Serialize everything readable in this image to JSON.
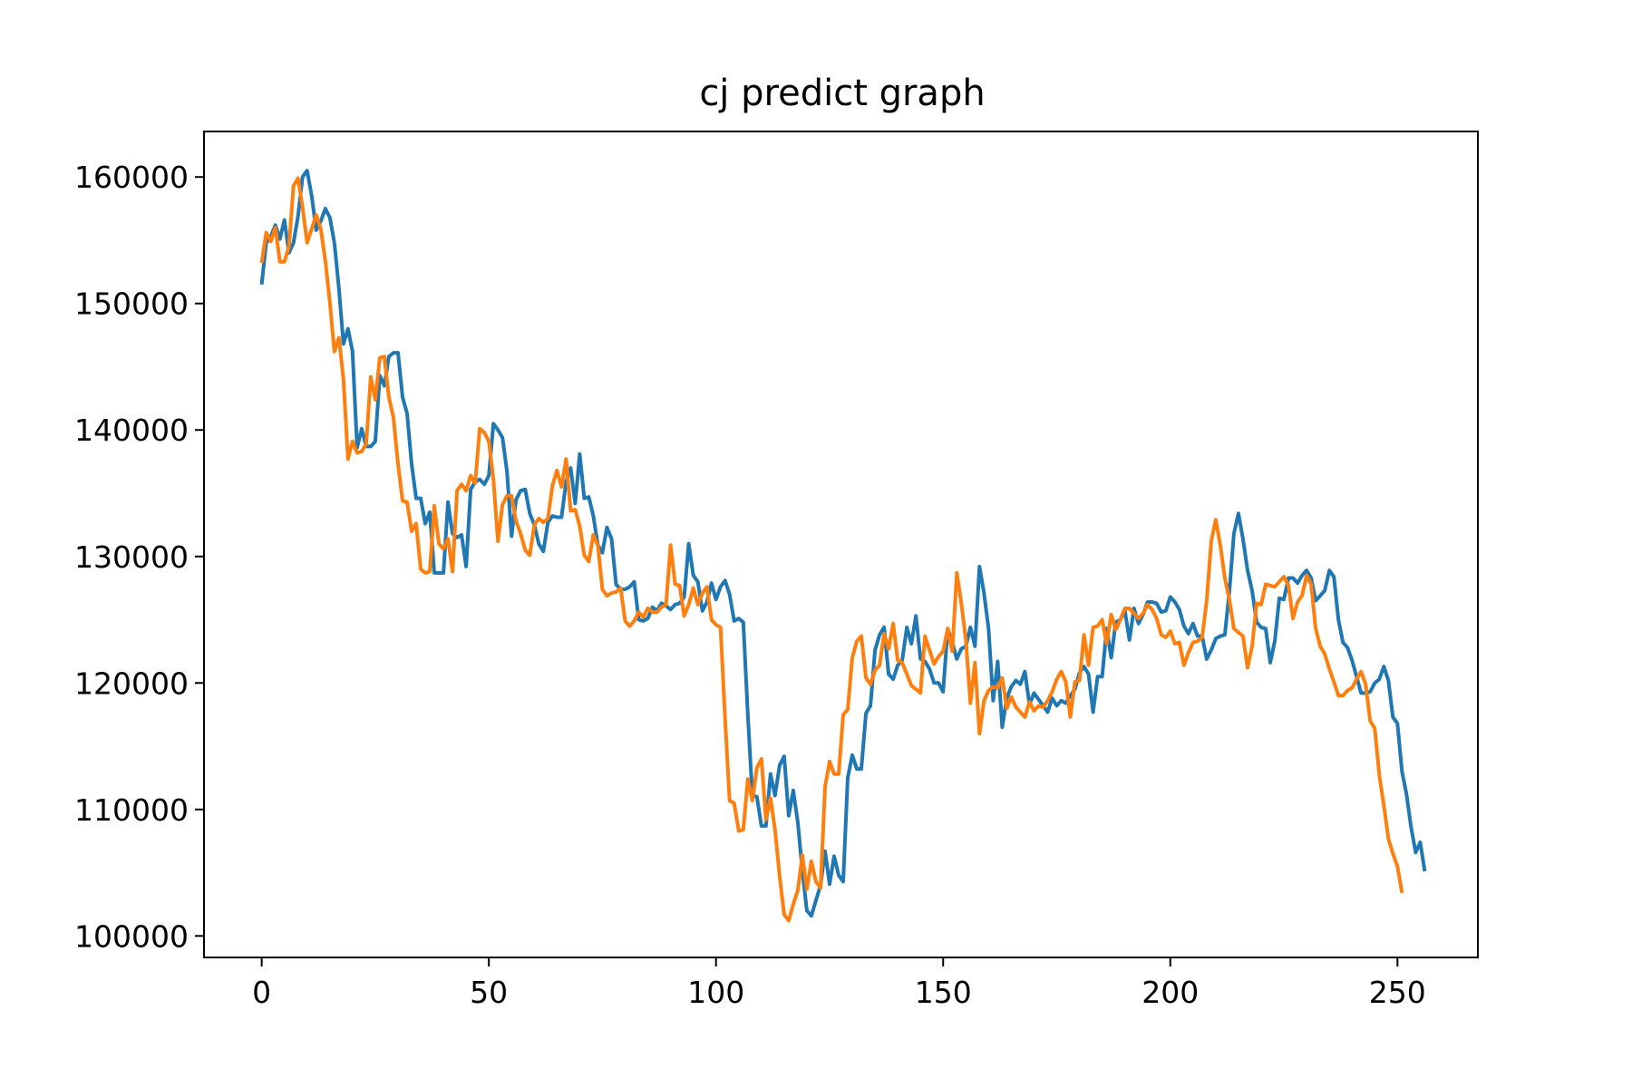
{
  "chart_data": {
    "type": "line",
    "title": "cj predict graph",
    "xlabel": "",
    "ylabel": "",
    "xlim": [
      -12.7,
      267.7
    ],
    "ylim": [
      98300,
      163600
    ],
    "xticks": [
      0,
      50,
      100,
      150,
      200,
      250
    ],
    "yticks": [
      100000,
      110000,
      120000,
      130000,
      140000,
      150000,
      160000
    ],
    "grid": false,
    "legend": "none",
    "series": [
      {
        "color": "#1f77b4",
        "x_start": 0,
        "values": [
          151500,
          154800,
          155300,
          156200,
          155100,
          156600,
          154000,
          154800,
          156900,
          160000,
          160500,
          158500,
          155800,
          156500,
          157500,
          156800,
          154800,
          151200,
          146800,
          148000,
          146200,
          138600,
          140100,
          138700,
          138700,
          139100,
          144300,
          143500,
          145800,
          146100,
          146100,
          142600,
          141300,
          137300,
          134600,
          134600,
          132600,
          133500,
          128700,
          128700,
          128700,
          134300,
          131800,
          131500,
          131700,
          129200,
          135300,
          135900,
          136100,
          135700,
          136400,
          140500,
          140000,
          139400,
          136700,
          131600,
          134500,
          135200,
          135300,
          133400,
          132500,
          131000,
          130400,
          132700,
          133200,
          133100,
          133100,
          135900,
          137000,
          134200,
          138100,
          134600,
          134700,
          133200,
          130900,
          130300,
          132300,
          131400,
          127800,
          127400,
          127400,
          127600,
          128000,
          125000,
          124900,
          125100,
          126000,
          125700,
          126300,
          126100,
          125800,
          126200,
          126300,
          126800,
          131000,
          128500,
          128000,
          125700,
          126400,
          127900,
          126600,
          127600,
          128100,
          127000,
          124900,
          125100,
          124800,
          117500,
          111100,
          111000,
          108700,
          108700,
          112800,
          111100,
          113500,
          114200,
          109500,
          111500,
          109000,
          105200,
          102000,
          101600,
          102800,
          104000,
          106700,
          104100,
          106300,
          104800,
          104300,
          112500,
          114300,
          113200,
          113200,
          117600,
          118200,
          122600,
          123800,
          124400,
          120700,
          120300,
          121400,
          121800,
          124400,
          123100,
          125300,
          121900,
          121700,
          121100,
          120000,
          120000,
          119300,
          124300,
          123200,
          121900,
          122700,
          122900,
          124400,
          122900,
          129200,
          127100,
          124300,
          118600,
          121700,
          116500,
          118800,
          119700,
          120200,
          119900,
          120900,
          118300,
          119200,
          118700,
          118200,
          117700,
          118800,
          118200,
          118600,
          118400,
          119000,
          119500,
          120800,
          121300,
          120700,
          117700,
          120500,
          120500,
          124300,
          122000,
          124800,
          125000,
          125700,
          123400,
          125900,
          124700,
          125400,
          126400,
          126400,
          126300,
          125600,
          125700,
          126800,
          126400,
          125800,
          124500,
          123900,
          124700,
          123700,
          123700,
          121900,
          122600,
          123500,
          123700,
          123800,
          127200,
          131800,
          133400,
          131400,
          128900,
          127300,
          124800,
          124400,
          124300,
          121600,
          123300,
          126700,
          126600,
          128300,
          128300,
          127900,
          128500,
          128900,
          128300,
          126500,
          126900,
          127300,
          128900,
          128400,
          125000,
          123200,
          122800,
          121800,
          120500,
          119200,
          119200,
          119300,
          120000,
          120300,
          121300,
          120200,
          117300,
          116800,
          113000,
          111200,
          108600,
          106600,
          107400,
          105100
        ]
      },
      {
        "color": "#ff7f0e",
        "x_start": 0,
        "values": [
          153200,
          155600,
          154900,
          156000,
          153300,
          153300,
          154500,
          159300,
          159900,
          157600,
          154800,
          155900,
          157000,
          155900,
          153400,
          150100,
          146200,
          147300,
          144000,
          137700,
          139100,
          138200,
          138300,
          138900,
          144200,
          142400,
          145700,
          145800,
          142600,
          141000,
          137300,
          134400,
          134300,
          132000,
          132600,
          129000,
          128700,
          128800,
          134000,
          131000,
          130600,
          131400,
          128800,
          135200,
          135700,
          135200,
          136400,
          135800,
          140100,
          139800,
          139100,
          136100,
          131200,
          134100,
          134800,
          134800,
          132800,
          131800,
          130500,
          130100,
          132500,
          133000,
          132700,
          133000,
          135600,
          136800,
          135500,
          137700,
          133600,
          133700,
          132400,
          130100,
          129600,
          131700,
          130900,
          127400,
          126900,
          127100,
          127200,
          127500,
          124900,
          124500,
          124900,
          125600,
          125200,
          125900,
          125600,
          125600,
          126000,
          126200,
          130900,
          127800,
          127700,
          125300,
          126200,
          127500,
          126200,
          127100,
          127600,
          125000,
          124600,
          124400,
          117200,
          110700,
          110500,
          108300,
          108400,
          112400,
          110700,
          113300,
          114000,
          109200,
          110900,
          108400,
          104700,
          101700,
          101200,
          102500,
          103600,
          106400,
          103700,
          105900,
          104300,
          103800,
          111800,
          113800,
          112800,
          112800,
          117500,
          117900,
          122000,
          123300,
          123700,
          120400,
          119900,
          121000,
          121400,
          123900,
          122700,
          124700,
          121800,
          121600,
          120700,
          119800,
          119500,
          119200,
          123700,
          122600,
          121500,
          122100,
          122500,
          124300,
          122500,
          128700,
          126300,
          123400,
          118400,
          121600,
          116000,
          118600,
          119400,
          119700,
          119600,
          120400,
          118000,
          118900,
          118100,
          117700,
          117300,
          118500,
          117800,
          118200,
          118100,
          118600,
          119300,
          120300,
          120900,
          120100,
          117300,
          120100,
          120200,
          123800,
          121400,
          124400,
          124500,
          125000,
          123100,
          125400,
          124200,
          125000,
          125900,
          125900,
          125500,
          125100,
          125500,
          126200,
          125800,
          125100,
          123800,
          123600,
          124100,
          123100,
          123200,
          121400,
          122400,
          123200,
          123300,
          123600,
          126500,
          131200,
          132900,
          130900,
          128300,
          126600,
          124300,
          124000,
          123700,
          121200,
          122900,
          126300,
          126200,
          127800,
          127700,
          127600,
          128000,
          128400,
          127700,
          125100,
          126400,
          126900,
          128500,
          127800,
          124300,
          122900,
          122300,
          121100,
          120100,
          119000,
          119000,
          119400,
          119600,
          120300,
          120900,
          119900,
          117000,
          116400,
          112700,
          110300,
          107700,
          106500,
          105500,
          103400
        ]
      }
    ]
  }
}
